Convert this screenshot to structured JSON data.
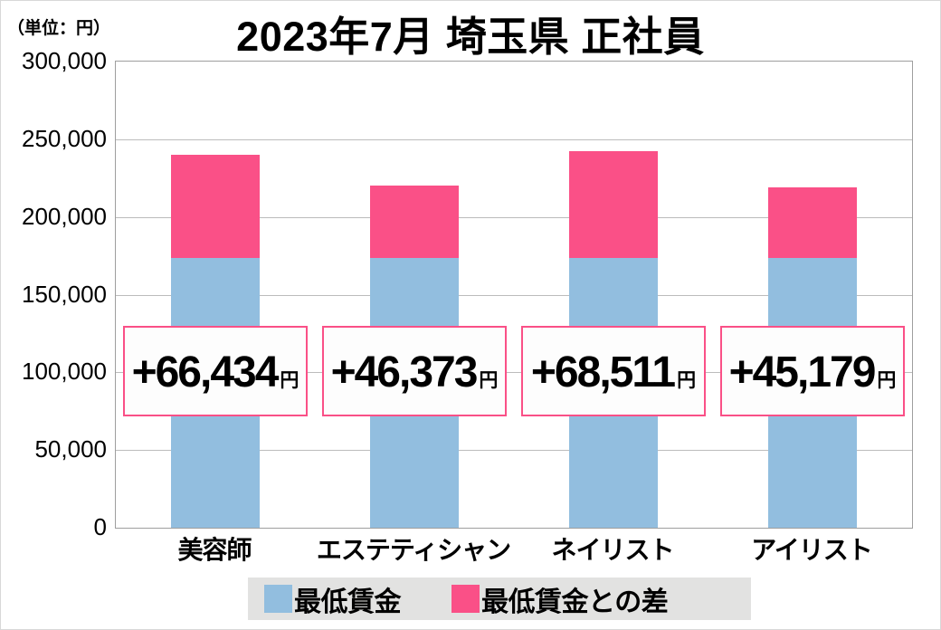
{
  "header": {
    "title": "2023年7月 埼玉県 正社員",
    "unit_label": "（単位：円）"
  },
  "colors": {
    "min_wage_blue": "#92bedf",
    "diff_pink": "#fa5087",
    "label_box_bg": "#fdfdfd",
    "legend_bg": "#e2e2e1",
    "gridline": "#bcbcbc",
    "plot_border": "#9e9e9e"
  },
  "legend": {
    "items": [
      {
        "label": "最低賃金",
        "color": "#92bedf"
      },
      {
        "label": "最低賃金との差",
        "color": "#fa5087"
      }
    ]
  },
  "chart_data": {
    "type": "bar",
    "stacked": true,
    "title": "2023年7月 埼玉県 正社員",
    "unit": "円",
    "categories": [
      "美容師",
      "エステティシャン",
      "ネイリスト",
      "アイリスト"
    ],
    "series": [
      {
        "name": "最低賃金",
        "color": "#92bedf",
        "values": [
          173712,
          173712,
          173712,
          173712
        ]
      },
      {
        "name": "最低賃金との差",
        "color": "#fa5087",
        "values": [
          66434,
          46373,
          68511,
          45179
        ]
      }
    ],
    "totals": [
      240146,
      220085,
      242223,
      218891
    ],
    "data_labels": [
      "+66,434",
      "+46,373",
      "+68,511",
      "+45,179"
    ],
    "data_label_suffix": "円",
    "ylim": [
      0,
      300000
    ],
    "ytick_step": 50000,
    "yticks": [
      "300,000",
      "250,000",
      "200,000",
      "150,000",
      "100,000",
      "50,000",
      "0"
    ],
    "grid": true,
    "legend_position": "bottom"
  }
}
